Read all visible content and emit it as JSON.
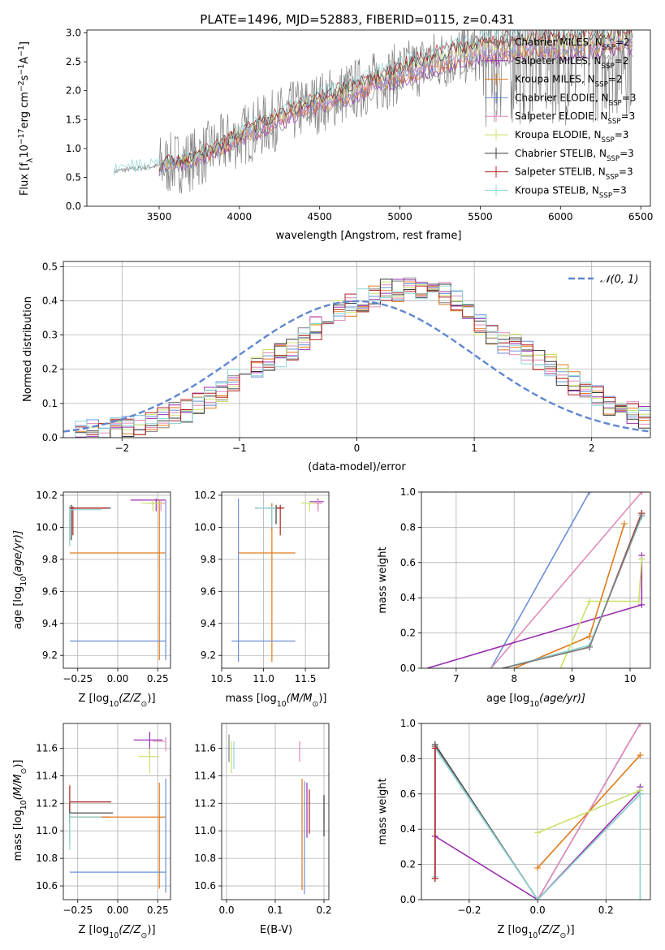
{
  "figure_title": "PLATE=1496, MJD=52883, FIBERID=0115, z=0.431",
  "series_colors": [
    "#808080",
    "#9b30b0",
    "#e07a1a",
    "#6a8fd8",
    "#e08ab8",
    "#c8e26a",
    "#3a3a3a",
    "#b22222",
    "#8fd6d6"
  ],
  "legend": [
    {
      "name": "Chabrier MILES, N",
      "sub": "SSP",
      "eq": "=2",
      "color": "#808080"
    },
    {
      "name": "Salpeter MILES, N",
      "sub": "SSP",
      "eq": "=2",
      "color": "#9b30b0"
    },
    {
      "name": "Kroupa MILES, N",
      "sub": "SSP",
      "eq": "=2",
      "color": "#e07a1a"
    },
    {
      "name": "Chabrier ELODIE, N",
      "sub": "SSP",
      "eq": "=3",
      "color": "#6a8fd8"
    },
    {
      "name": "Salpeter ELODIE, N",
      "sub": "SSP",
      "eq": "=3",
      "color": "#e08ab8"
    },
    {
      "name": "Kroupa ELODIE, N",
      "sub": "SSP",
      "eq": "=3",
      "color": "#c8e26a"
    },
    {
      "name": "Chabrier STELIB, N",
      "sub": "SSP",
      "eq": "=3",
      "color": "#3a3a3a"
    },
    {
      "name": "Salpeter STELIB, N",
      "sub": "SSP",
      "eq": "=3",
      "color": "#b22222"
    },
    {
      "name": "Kroupa STELIB, N",
      "sub": "SSP",
      "eq": "=3",
      "color": "#8fd6d6"
    }
  ],
  "chart_data": [
    {
      "id": "spectrum",
      "type": "line",
      "xlabel": "wavelength [Angstrom, rest frame]",
      "ylabel": "Flux [f",
      "ylabel_parts": [
        "Flux [f",
        "λ",
        "10",
        "−17",
        "erg cm",
        "−2",
        "s",
        "−1",
        "A",
        "−1",
        "]"
      ],
      "xlim": [
        3050,
        6560
      ],
      "ylim": [
        0,
        3.05
      ],
      "xticks": [
        3500,
        4000,
        4500,
        5000,
        5500,
        6000,
        6500
      ],
      "yticks": [
        0.0,
        0.5,
        1.0,
        1.5,
        2.0,
        2.5,
        3.0
      ],
      "continuum": {
        "x": [
          3200,
          3500,
          3700,
          4000,
          4300,
          4600,
          4900,
          5200,
          5500,
          5800,
          6100,
          6400
        ],
        "y": [
          0.6,
          0.7,
          0.8,
          1.2,
          1.6,
          1.9,
          2.2,
          2.5,
          2.7,
          2.8,
          2.8,
          2.9
        ]
      },
      "data_start": 3220,
      "grid": false,
      "legend_position": "top-right"
    },
    {
      "id": "residual_hist",
      "type": "bar",
      "xlabel": "(data-model)/error",
      "ylabel": "Normed distribution",
      "xlim": [
        -2.5,
        2.5
      ],
      "ylim": [
        0,
        0.515
      ],
      "xticks": [
        -2,
        -1,
        0,
        1,
        2
      ],
      "yticks": [
        0.0,
        0.1,
        0.2,
        0.3,
        0.4,
        0.5
      ],
      "bin_width": 0.1,
      "base_hist": [
        0.01,
        0.015,
        0.02,
        0.02,
        0.025,
        0.03,
        0.04,
        0.05,
        0.06,
        0.07,
        0.08,
        0.1,
        0.12,
        0.14,
        0.17,
        0.19,
        0.21,
        0.23,
        0.24,
        0.26,
        0.29,
        0.32,
        0.35,
        0.37,
        0.39,
        0.4,
        0.41,
        0.43,
        0.43,
        0.45,
        0.44,
        0.44,
        0.42,
        0.4,
        0.36,
        0.33,
        0.3,
        0.28,
        0.27,
        0.25,
        0.23,
        0.21,
        0.18,
        0.16,
        0.14,
        0.12,
        0.1,
        0.08,
        0.07,
        0.06
      ],
      "normal_label": "𝒩(0, 1)",
      "grid": true,
      "legend_position": "top-right"
    },
    {
      "id": "age_vs_Z",
      "type": "scatter",
      "xlabel": "Z [log",
      "xlabel_parts": [
        "Z [log",
        "10",
        "(Z/Z",
        "⊙",
        ")]"
      ],
      "ylabel_parts": [
        "age  [log",
        "10",
        "(age/yr)]"
      ],
      "xlim": [
        -0.34,
        0.33
      ],
      "ylim": [
        9.12,
        10.22
      ],
      "xticks": [
        -0.25,
        0.0,
        0.25
      ],
      "yticks": [
        9.2,
        9.4,
        9.6,
        9.8,
        10.0,
        10.2
      ],
      "points": [
        {
          "x": -0.3,
          "y": 10.12,
          "xlo": -0.3,
          "xhi": -0.04,
          "ylo": 9.9,
          "yhi": 10.13,
          "c": 0
        },
        {
          "x": 0.24,
          "y": 10.17,
          "xlo": 0.08,
          "xhi": 0.3,
          "ylo": 10.1,
          "yhi": 10.18,
          "c": 1
        },
        {
          "x": 0.26,
          "y": 9.84,
          "xlo": -0.3,
          "xhi": 0.3,
          "ylo": 9.17,
          "yhi": 10.17,
          "c": 2
        },
        {
          "x": 0.3,
          "y": 9.29,
          "xlo": -0.3,
          "xhi": 0.3,
          "ylo": 9.17,
          "yhi": 10.17,
          "c": 3
        },
        {
          "x": 0.27,
          "y": 10.15,
          "xlo": 0.2,
          "xhi": 0.3,
          "ylo": 10.1,
          "yhi": 10.17,
          "c": 4
        },
        {
          "x": 0.22,
          "y": 10.15,
          "xlo": 0.15,
          "xhi": 0.28,
          "ylo": 10.1,
          "yhi": 10.17,
          "c": 5
        },
        {
          "x": -0.29,
          "y": 10.12,
          "xlo": -0.3,
          "xhi": -0.05,
          "ylo": 9.92,
          "yhi": 10.14,
          "c": 6
        },
        {
          "x": -0.28,
          "y": 10.12,
          "xlo": -0.3,
          "xhi": -0.06,
          "ylo": 9.95,
          "yhi": 10.13,
          "c": 7
        },
        {
          "x": -0.3,
          "y": 10.11,
          "xlo": -0.3,
          "xhi": -0.1,
          "ylo": 9.88,
          "yhi": 10.12,
          "c": 8
        }
      ],
      "grid": true
    },
    {
      "id": "age_vs_mass",
      "type": "scatter",
      "xlabel_parts": [
        "mass [log",
        "10",
        "(M/M",
        "⊙",
        ")]"
      ],
      "xlim": [
        10.5,
        11.78
      ],
      "ylim": [
        9.12,
        10.22
      ],
      "xticks": [
        10.5,
        11.0,
        11.5
      ],
      "yticks": [
        9.2,
        9.4,
        9.6,
        9.8,
        10.0,
        10.2
      ],
      "points": [
        {
          "x": 11.1,
          "y": 10.12,
          "xlo": 10.9,
          "xhi": 11.2,
          "ylo": 9.98,
          "yhi": 10.14,
          "c": 0
        },
        {
          "x": 11.65,
          "y": 10.16,
          "xlo": 11.55,
          "xhi": 11.72,
          "ylo": 10.1,
          "yhi": 10.18,
          "c": 1
        },
        {
          "x": 11.1,
          "y": 9.84,
          "xlo": 10.7,
          "xhi": 11.38,
          "ylo": 9.16,
          "yhi": 10.15,
          "c": 2
        },
        {
          "x": 10.7,
          "y": 9.29,
          "xlo": 10.62,
          "xhi": 11.38,
          "ylo": 9.16,
          "yhi": 10.18,
          "c": 3
        },
        {
          "x": 11.65,
          "y": 10.15,
          "xlo": 11.6,
          "xhi": 11.7,
          "ylo": 10.1,
          "yhi": 10.17,
          "c": 4
        },
        {
          "x": 11.55,
          "y": 10.15,
          "xlo": 11.45,
          "xhi": 11.62,
          "ylo": 10.1,
          "yhi": 10.16,
          "c": 5
        },
        {
          "x": 11.15,
          "y": 10.12,
          "xlo": 11.05,
          "xhi": 11.22,
          "ylo": 10.02,
          "yhi": 10.14,
          "c": 6
        },
        {
          "x": 11.2,
          "y": 10.12,
          "xlo": 11.12,
          "xhi": 11.25,
          "ylo": 9.95,
          "yhi": 10.14,
          "c": 7
        },
        {
          "x": 11.1,
          "y": 10.12,
          "xlo": 10.92,
          "xhi": 11.15,
          "ylo": 10.0,
          "yhi": 10.13,
          "c": 8
        }
      ],
      "grid": true
    },
    {
      "id": "mass_weight_vs_age",
      "type": "line",
      "xlabel_parts": [
        "age  [log",
        "10",
        "(age/yr)]"
      ],
      "ylabel": "mass weight",
      "xlim": [
        6.4,
        10.35
      ],
      "ylim": [
        0,
        1.0
      ],
      "xticks": [
        7,
        8,
        9,
        10
      ],
      "yticks": [
        0.0,
        0.2,
        0.4,
        0.6,
        0.8,
        1.0
      ],
      "series": [
        {
          "c": 3,
          "x": [
            7.6,
            9.3
          ],
          "y": [
            0,
            1.0
          ]
        },
        {
          "c": 4,
          "x": [
            7.6,
            10.2
          ],
          "y": [
            0,
            1.0
          ]
        },
        {
          "c": 1,
          "x": [
            6.5,
            10.2,
            10.2,
            10.2
          ],
          "y": [
            0,
            0.36,
            0.62,
            0.64
          ]
        },
        {
          "c": 2,
          "x": [
            8.0,
            9.3,
            9.9
          ],
          "y": [
            0,
            0.18,
            0.82
          ]
        },
        {
          "c": 5,
          "x": [
            8.8,
            9.3,
            10.15,
            10.2
          ],
          "y": [
            0,
            0.38,
            0.38,
            0.62
          ]
        },
        {
          "c": 6,
          "x": [
            7.8,
            9.3,
            10.2
          ],
          "y": [
            0,
            0.12,
            0.88
          ]
        },
        {
          "c": 7,
          "x": [
            7.8,
            9.3,
            10.2
          ],
          "y": [
            0,
            0.12,
            0.88
          ]
        },
        {
          "c": 8,
          "x": [
            7.8,
            9.3,
            10.2
          ],
          "y": [
            0,
            0.13,
            0.86
          ]
        },
        {
          "c": 0,
          "x": [
            7.8,
            9.3,
            10.2
          ],
          "y": [
            0,
            0.12,
            0.87
          ]
        }
      ],
      "grid": true
    },
    {
      "id": "mass_vs_Z",
      "type": "scatter",
      "xlabel_parts": [
        "Z [log",
        "10",
        "(Z/Z",
        "⊙",
        ")]"
      ],
      "ylabel_parts": [
        "mass [log",
        "10",
        "(M/M",
        "⊙",
        ")]"
      ],
      "xlim": [
        -0.34,
        0.33
      ],
      "ylim": [
        10.5,
        11.78
      ],
      "xticks": [
        -0.25,
        0.0,
        0.25
      ],
      "yticks": [
        10.6,
        10.8,
        11.0,
        11.2,
        11.4,
        11.6
      ],
      "points": [
        {
          "x": -0.3,
          "y": 11.1,
          "xlo": -0.3,
          "xhi": -0.05,
          "ylo": 10.9,
          "yhi": 11.15,
          "c": 0
        },
        {
          "x": 0.2,
          "y": 11.66,
          "xlo": 0.1,
          "xhi": 0.28,
          "ylo": 11.55,
          "yhi": 11.72,
          "c": 1
        },
        {
          "x": 0.26,
          "y": 11.1,
          "xlo": -0.3,
          "xhi": 0.3,
          "ylo": 10.58,
          "yhi": 11.35,
          "c": 2
        },
        {
          "x": 0.3,
          "y": 10.7,
          "xlo": -0.3,
          "xhi": 0.3,
          "ylo": 10.55,
          "yhi": 11.38,
          "c": 3
        },
        {
          "x": 0.3,
          "y": 11.65,
          "xlo": 0.22,
          "xhi": 0.3,
          "ylo": 11.58,
          "yhi": 11.68,
          "c": 4
        },
        {
          "x": 0.2,
          "y": 11.54,
          "xlo": 0.13,
          "xhi": 0.26,
          "ylo": 11.42,
          "yhi": 11.6,
          "c": 5
        },
        {
          "x": -0.3,
          "y": 11.13,
          "xlo": -0.3,
          "xhi": -0.03,
          "ylo": 11.05,
          "yhi": 11.2,
          "c": 6
        },
        {
          "x": -0.3,
          "y": 11.21,
          "xlo": -0.3,
          "xhi": -0.04,
          "ylo": 11.15,
          "yhi": 11.33,
          "c": 7
        },
        {
          "x": -0.3,
          "y": 11.1,
          "xlo": -0.3,
          "xhi": -0.1,
          "ylo": 10.86,
          "yhi": 11.13,
          "c": 8
        }
      ],
      "grid": true
    },
    {
      "id": "mass_vs_ebv",
      "type": "scatter",
      "xlabel": "E(B-V)",
      "xlim": [
        -0.01,
        0.21
      ],
      "ylim": [
        10.5,
        11.78
      ],
      "xticks": [
        0.0,
        0.1,
        0.2
      ],
      "yticks": [
        10.6,
        10.8,
        11.0,
        11.2,
        11.4,
        11.6
      ],
      "points": [
        {
          "x": 0.005,
          "y": 11.58,
          "ylo": 11.5,
          "yhi": 11.7,
          "c": 0
        },
        {
          "x": 0.01,
          "y": 11.55,
          "ylo": 11.42,
          "yhi": 11.65,
          "c": 5
        },
        {
          "x": 0.015,
          "y": 11.6,
          "ylo": 11.45,
          "yhi": 11.65,
          "c": 8
        },
        {
          "x": 0.15,
          "y": 11.6,
          "ylo": 11.5,
          "yhi": 11.65,
          "c": 4
        },
        {
          "x": 0.155,
          "y": 11.0,
          "ylo": 10.57,
          "yhi": 11.38,
          "c": 2
        },
        {
          "x": 0.16,
          "y": 11.0,
          "ylo": 10.54,
          "yhi": 11.36,
          "c": 3
        },
        {
          "x": 0.165,
          "y": 11.15,
          "ylo": 10.95,
          "yhi": 11.35,
          "c": 1
        },
        {
          "x": 0.17,
          "y": 11.1,
          "ylo": 10.98,
          "yhi": 11.3,
          "c": 7
        },
        {
          "x": 0.2,
          "y": 11.1,
          "ylo": 10.96,
          "yhi": 11.26,
          "c": 6
        }
      ],
      "grid": true
    },
    {
      "id": "mass_weight_vs_Z",
      "type": "line",
      "xlabel_parts": [
        "Z [log",
        "10",
        "(Z/Z",
        "⊙",
        ")]"
      ],
      "ylabel": "mass weight",
      "xlim": [
        -0.34,
        0.33
      ],
      "ylim": [
        0,
        1.0
      ],
      "xticks": [
        -0.2,
        0.0,
        0.2
      ],
      "yticks": [
        0.0,
        0.2,
        0.4,
        0.6,
        0.8,
        1.0
      ],
      "series": [
        {
          "c": 3,
          "x": [
            0.0,
            0.3
          ],
          "y": [
            0,
            1.0
          ]
        },
        {
          "c": 4,
          "x": [
            0.0,
            0.3
          ],
          "y": [
            0,
            1.0
          ]
        },
        {
          "c": 1,
          "x": [
            -0.3,
            0.0,
            0.3,
            0.3
          ],
          "y": [
            0.36,
            0,
            0.62,
            0.64
          ]
        },
        {
          "c": 2,
          "x": [
            0.0,
            0.3
          ],
          "y": [
            0.18,
            0.82
          ]
        },
        {
          "c": 5,
          "x": [
            0.0,
            0.3,
            0.3
          ],
          "y": [
            0.38,
            0.62,
            0
          ]
        },
        {
          "c": 6,
          "x": [
            -0.3,
            -0.3,
            0.0,
            0.3
          ],
          "y": [
            0.12,
            0.88,
            0,
            0.6
          ]
        },
        {
          "c": 0,
          "x": [
            -0.3,
            -0.3,
            0.0
          ],
          "y": [
            0.12,
            0.87,
            0
          ]
        },
        {
          "c": 8,
          "x": [
            -0.3,
            -0.3,
            0.0,
            0.3,
            0.3
          ],
          "y": [
            0.13,
            0.86,
            0,
            0.6,
            0
          ]
        },
        {
          "c": 7,
          "x": [
            -0.3,
            -0.3
          ],
          "y": [
            0.12,
            0.86
          ]
        }
      ],
      "grid": true
    }
  ]
}
